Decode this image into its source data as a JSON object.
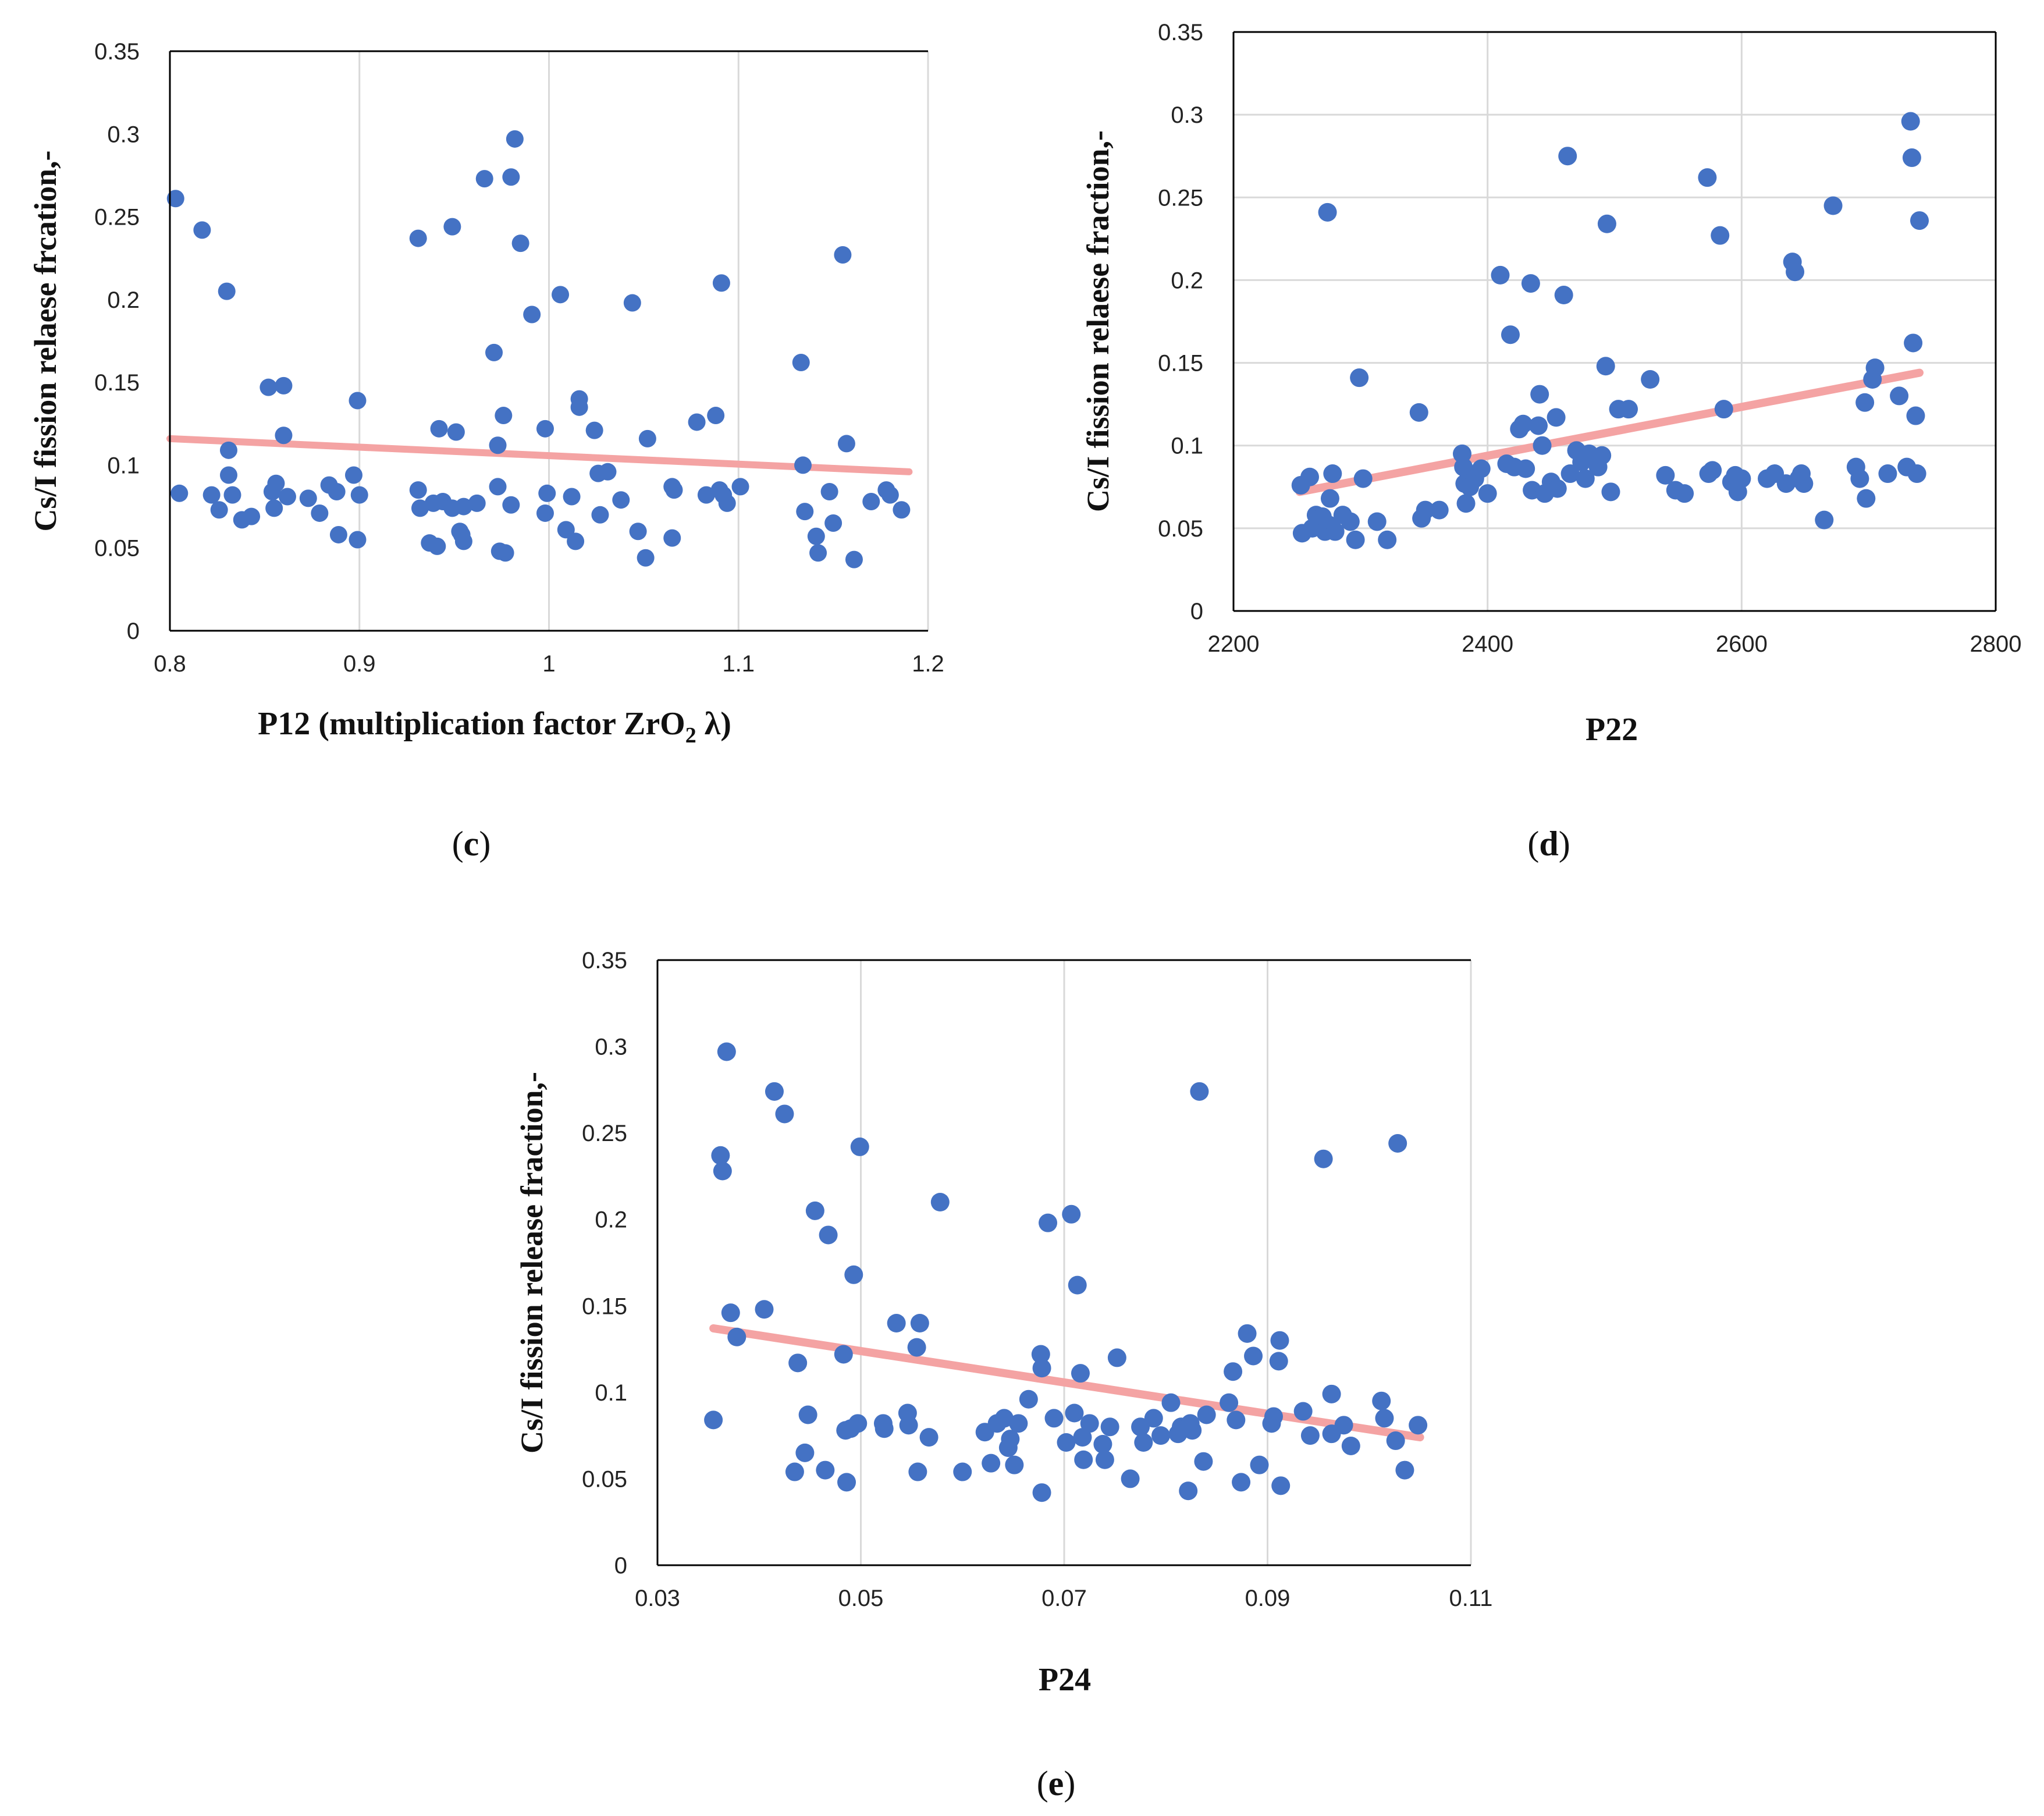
{
  "colors": {
    "points": "#4472c4",
    "trendline": "#f4a3a3",
    "grid": "#d9d9d9",
    "axis": "#000000"
  },
  "chart_data": [
    {
      "id": "c",
      "type": "scatter",
      "panel_label": "c",
      "xlabel": "P12 (multiplication factor ZrO",
      "xlabel_subscript": "2",
      "xlabel_suffix": " λ)",
      "ylabel": "Cs/I fission relaese frcation,-",
      "xlim": [
        0.8,
        1.2
      ],
      "ylim": [
        0,
        0.35
      ],
      "xticks": [
        0.8,
        0.9,
        1.0,
        1.1,
        1.2
      ],
      "xtick_labels": [
        "0.8",
        "0.9",
        "1",
        "1.1",
        "1.2"
      ],
      "yticks": [
        0,
        0.05,
        0.1,
        0.15,
        0.2,
        0.25,
        0.3,
        0.35
      ],
      "ytick_labels": [
        "0",
        "0.05",
        "0.1",
        "0.15",
        "0.2",
        "0.25",
        "0.3",
        "0.35"
      ],
      "grid": "vertical",
      "trendline": {
        "x": [
          0.8,
          1.19
        ],
        "y": [
          0.116,
          0.096
        ]
      },
      "points": [
        [
          0.803,
          0.261
        ],
        [
          0.805,
          0.083
        ],
        [
          0.817,
          0.242
        ],
        [
          0.822,
          0.082
        ],
        [
          0.826,
          0.073
        ],
        [
          0.83,
          0.205
        ],
        [
          0.831,
          0.109
        ],
        [
          0.831,
          0.094
        ],
        [
          0.833,
          0.082
        ],
        [
          0.838,
          0.067
        ],
        [
          0.843,
          0.069
        ],
        [
          0.852,
          0.147
        ],
        [
          0.854,
          0.084
        ],
        [
          0.855,
          0.074
        ],
        [
          0.856,
          0.089
        ],
        [
          0.86,
          0.148
        ],
        [
          0.86,
          0.118
        ],
        [
          0.862,
          0.081
        ],
        [
          0.873,
          0.08
        ],
        [
          0.879,
          0.071
        ],
        [
          0.884,
          0.088
        ],
        [
          0.888,
          0.084
        ],
        [
          0.889,
          0.058
        ],
        [
          0.897,
          0.094
        ],
        [
          0.899,
          0.139
        ],
        [
          0.899,
          0.055
        ],
        [
          0.9,
          0.082
        ],
        [
          0.931,
          0.237
        ],
        [
          0.931,
          0.085
        ],
        [
          0.932,
          0.074
        ],
        [
          0.937,
          0.053
        ],
        [
          0.939,
          0.077
        ],
        [
          0.941,
          0.051
        ],
        [
          0.942,
          0.122
        ],
        [
          0.944,
          0.078
        ],
        [
          0.949,
          0.244
        ],
        [
          0.949,
          0.074
        ],
        [
          0.951,
          0.12
        ],
        [
          0.953,
          0.06
        ],
        [
          0.954,
          0.058
        ],
        [
          0.955,
          0.075
        ],
        [
          0.955,
          0.054
        ],
        [
          0.962,
          0.077
        ],
        [
          0.966,
          0.273
        ],
        [
          0.971,
          0.168
        ],
        [
          0.973,
          0.112
        ],
        [
          0.973,
          0.087
        ],
        [
          0.974,
          0.048
        ],
        [
          0.976,
          0.13
        ],
        [
          0.977,
          0.047
        ],
        [
          0.98,
          0.274
        ],
        [
          0.98,
          0.076
        ],
        [
          0.982,
          0.297
        ],
        [
          0.985,
          0.234
        ],
        [
          0.991,
          0.191
        ],
        [
          0.998,
          0.122
        ],
        [
          0.998,
          0.071
        ],
        [
          0.999,
          0.083
        ],
        [
          1.006,
          0.203
        ],
        [
          1.009,
          0.061
        ],
        [
          1.012,
          0.081
        ],
        [
          1.014,
          0.054
        ],
        [
          1.016,
          0.14
        ],
        [
          1.016,
          0.135
        ],
        [
          1.024,
          0.121
        ],
        [
          1.026,
          0.095
        ],
        [
          1.027,
          0.07
        ],
        [
          1.031,
          0.096
        ],
        [
          1.038,
          0.079
        ],
        [
          1.044,
          0.198
        ],
        [
          1.047,
          0.06
        ],
        [
          1.051,
          0.044
        ],
        [
          1.052,
          0.116
        ],
        [
          1.065,
          0.087
        ],
        [
          1.065,
          0.056
        ],
        [
          1.066,
          0.085
        ],
        [
          1.078,
          0.126
        ],
        [
          1.083,
          0.082
        ],
        [
          1.088,
          0.13
        ],
        [
          1.09,
          0.085
        ],
        [
          1.091,
          0.21
        ],
        [
          1.092,
          0.082
        ],
        [
          1.094,
          0.077
        ],
        [
          1.101,
          0.087
        ],
        [
          1.133,
          0.162
        ],
        [
          1.134,
          0.1
        ],
        [
          1.135,
          0.072
        ],
        [
          1.141,
          0.057
        ],
        [
          1.142,
          0.047
        ],
        [
          1.148,
          0.084
        ],
        [
          1.15,
          0.065
        ],
        [
          1.155,
          0.227
        ],
        [
          1.157,
          0.113
        ],
        [
          1.161,
          0.043
        ],
        [
          1.17,
          0.078
        ],
        [
          1.178,
          0.085
        ],
        [
          1.18,
          0.082
        ],
        [
          1.186,
          0.073
        ]
      ]
    },
    {
      "id": "d",
      "type": "scatter",
      "panel_label": "d",
      "xlabel": "P22",
      "ylabel": "Cs/I fission relaese fraction,-",
      "xlim": [
        2200,
        2800
      ],
      "ylim": [
        0,
        0.35
      ],
      "xticks": [
        2200,
        2400,
        2600,
        2800
      ],
      "xtick_labels": [
        "2200",
        "2400",
        "2600",
        "2800"
      ],
      "yticks": [
        0,
        0.05,
        0.1,
        0.15,
        0.2,
        0.25,
        0.3,
        0.35
      ],
      "ytick_labels": [
        "0",
        "0.05",
        "0.1",
        "0.15",
        "0.2",
        "0.25",
        "0.3",
        "0.35"
      ],
      "grid": "both",
      "trendline": {
        "x": [
          2252,
          2740
        ],
        "y": [
          0.072,
          0.144
        ]
      },
      "points": [
        [
          2253,
          0.076
        ],
        [
          2254,
          0.047
        ],
        [
          2260,
          0.081
        ],
        [
          2262,
          0.05
        ],
        [
          2265,
          0.058
        ],
        [
          2268,
          0.053
        ],
        [
          2270,
          0.057
        ],
        [
          2272,
          0.048
        ],
        [
          2274,
          0.241
        ],
        [
          2275,
          0.052
        ],
        [
          2276,
          0.068
        ],
        [
          2278,
          0.083
        ],
        [
          2280,
          0.048
        ],
        [
          2286,
          0.058
        ],
        [
          2292,
          0.054
        ],
        [
          2296,
          0.043
        ],
        [
          2299,
          0.141
        ],
        [
          2302,
          0.08
        ],
        [
          2313,
          0.054
        ],
        [
          2321,
          0.043
        ],
        [
          2346,
          0.12
        ],
        [
          2348,
          0.056
        ],
        [
          2351,
          0.061
        ],
        [
          2362,
          0.061
        ],
        [
          2380,
          0.095
        ],
        [
          2381,
          0.087
        ],
        [
          2382,
          0.077
        ],
        [
          2383,
          0.065
        ],
        [
          2386,
          0.075
        ],
        [
          2390,
          0.08
        ],
        [
          2395,
          0.086
        ],
        [
          2400,
          0.071
        ],
        [
          2410,
          0.203
        ],
        [
          2415,
          0.089
        ],
        [
          2418,
          0.167
        ],
        [
          2421,
          0.087
        ],
        [
          2425,
          0.11
        ],
        [
          2428,
          0.113
        ],
        [
          2430,
          0.086
        ],
        [
          2434,
          0.198
        ],
        [
          2435,
          0.073
        ],
        [
          2440,
          0.112
        ],
        [
          2441,
          0.131
        ],
        [
          2443,
          0.1
        ],
        [
          2445,
          0.071
        ],
        [
          2450,
          0.078
        ],
        [
          2454,
          0.117
        ],
        [
          2455,
          0.074
        ],
        [
          2460,
          0.191
        ],
        [
          2463,
          0.275
        ],
        [
          2465,
          0.083
        ],
        [
          2470,
          0.097
        ],
        [
          2474,
          0.09
        ],
        [
          2477,
          0.08
        ],
        [
          2480,
          0.095
        ],
        [
          2487,
          0.087
        ],
        [
          2490,
          0.094
        ],
        [
          2493,
          0.148
        ],
        [
          2494,
          0.234
        ],
        [
          2497,
          0.072
        ],
        [
          2503,
          0.122
        ],
        [
          2511,
          0.122
        ],
        [
          2528,
          0.14
        ],
        [
          2540,
          0.082
        ],
        [
          2548,
          0.073
        ],
        [
          2555,
          0.071
        ],
        [
          2573,
          0.262
        ],
        [
          2574,
          0.083
        ],
        [
          2577,
          0.085
        ],
        [
          2583,
          0.227
        ],
        [
          2586,
          0.122
        ],
        [
          2592,
          0.078
        ],
        [
          2595,
          0.082
        ],
        [
          2597,
          0.072
        ],
        [
          2600,
          0.08
        ],
        [
          2620,
          0.08
        ],
        [
          2626,
          0.083
        ],
        [
          2635,
          0.077
        ],
        [
          2640,
          0.211
        ],
        [
          2642,
          0.205
        ],
        [
          2645,
          0.08
        ],
        [
          2647,
          0.083
        ],
        [
          2649,
          0.077
        ],
        [
          2665,
          0.055
        ],
        [
          2672,
          0.245
        ],
        [
          2690,
          0.087
        ],
        [
          2693,
          0.08
        ],
        [
          2697,
          0.126
        ],
        [
          2698,
          0.068
        ],
        [
          2703,
          0.14
        ],
        [
          2705,
          0.147
        ],
        [
          2715,
          0.083
        ],
        [
          2724,
          0.13
        ],
        [
          2730,
          0.087
        ],
        [
          2733,
          0.296
        ],
        [
          2734,
          0.274
        ],
        [
          2735,
          0.162
        ],
        [
          2737,
          0.118
        ],
        [
          2738,
          0.083
        ],
        [
          2740,
          0.236
        ]
      ]
    },
    {
      "id": "e",
      "type": "scatter",
      "panel_label": "e",
      "xlabel": "P24",
      "ylabel": "Cs/I fission release fraction,-",
      "xlim": [
        0.03,
        0.11
      ],
      "ylim": [
        0,
        0.35
      ],
      "xticks": [
        0.03,
        0.05,
        0.07,
        0.09,
        0.11
      ],
      "xtick_labels": [
        "0.03",
        "0.05",
        "0.07",
        "0.09",
        "0.11"
      ],
      "yticks": [
        0,
        0.05,
        0.1,
        0.15,
        0.2,
        0.25,
        0.3,
        0.35
      ],
      "ytick_labels": [
        "0",
        "0.05",
        "0.1",
        "0.15",
        "0.2",
        "0.25",
        "0.3",
        "0.35"
      ],
      "grid": "vertical",
      "trendline": {
        "x": [
          0.0355,
          0.105
        ],
        "y": [
          0.137,
          0.074
        ]
      },
      "points": [
        [
          0.0355,
          0.084
        ],
        [
          0.0362,
          0.237
        ],
        [
          0.0364,
          0.228
        ],
        [
          0.0368,
          0.297
        ],
        [
          0.0372,
          0.146
        ],
        [
          0.0378,
          0.132
        ],
        [
          0.0405,
          0.148
        ],
        [
          0.0415,
          0.274
        ],
        [
          0.0425,
          0.261
        ],
        [
          0.0435,
          0.054
        ],
        [
          0.0438,
          0.117
        ],
        [
          0.0445,
          0.065
        ],
        [
          0.0448,
          0.087
        ],
        [
          0.0455,
          0.205
        ],
        [
          0.0465,
          0.055
        ],
        [
          0.0468,
          0.191
        ],
        [
          0.0483,
          0.122
        ],
        [
          0.0485,
          0.078
        ],
        [
          0.0486,
          0.048
        ],
        [
          0.049,
          0.079
        ],
        [
          0.0493,
          0.168
        ],
        [
          0.0497,
          0.082
        ],
        [
          0.0499,
          0.242
        ],
        [
          0.0522,
          0.082
        ],
        [
          0.0523,
          0.079
        ],
        [
          0.0535,
          0.14
        ],
        [
          0.0546,
          0.088
        ],
        [
          0.0547,
          0.081
        ],
        [
          0.0556,
          0.054
        ],
        [
          0.0555,
          0.126
        ],
        [
          0.0558,
          0.14
        ],
        [
          0.0567,
          0.074
        ],
        [
          0.0578,
          0.21
        ],
        [
          0.06,
          0.054
        ],
        [
          0.0622,
          0.077
        ],
        [
          0.0628,
          0.059
        ],
        [
          0.0634,
          0.082
        ],
        [
          0.0641,
          0.085
        ],
        [
          0.0645,
          0.068
        ],
        [
          0.0647,
          0.073
        ],
        [
          0.0651,
          0.058
        ],
        [
          0.0655,
          0.082
        ],
        [
          0.0665,
          0.096
        ],
        [
          0.0677,
          0.122
        ],
        [
          0.0678,
          0.042
        ],
        [
          0.0678,
          0.114
        ],
        [
          0.0684,
          0.198
        ],
        [
          0.069,
          0.085
        ],
        [
          0.0702,
          0.071
        ],
        [
          0.0707,
          0.203
        ],
        [
          0.071,
          0.088
        ],
        [
          0.0713,
          0.162
        ],
        [
          0.0716,
          0.111
        ],
        [
          0.0718,
          0.074
        ],
        [
          0.0719,
          0.061
        ],
        [
          0.0725,
          0.082
        ],
        [
          0.0738,
          0.07
        ],
        [
          0.074,
          0.061
        ],
        [
          0.0745,
          0.08
        ],
        [
          0.0752,
          0.12
        ],
        [
          0.0765,
          0.05
        ],
        [
          0.0775,
          0.08
        ],
        [
          0.0778,
          0.071
        ],
        [
          0.0788,
          0.085
        ],
        [
          0.0795,
          0.075
        ],
        [
          0.0805,
          0.094
        ],
        [
          0.0812,
          0.076
        ],
        [
          0.0815,
          0.08
        ],
        [
          0.0822,
          0.043
        ],
        [
          0.0824,
          0.082
        ],
        [
          0.0826,
          0.078
        ],
        [
          0.0833,
          0.274
        ],
        [
          0.0837,
          0.06
        ],
        [
          0.084,
          0.087
        ],
        [
          0.0862,
          0.094
        ],
        [
          0.0866,
          0.112
        ],
        [
          0.0869,
          0.084
        ],
        [
          0.0874,
          0.048
        ],
        [
          0.088,
          0.134
        ],
        [
          0.0886,
          0.121
        ],
        [
          0.0892,
          0.058
        ],
        [
          0.0904,
          0.082
        ],
        [
          0.0906,
          0.086
        ],
        [
          0.0911,
          0.118
        ],
        [
          0.0912,
          0.13
        ],
        [
          0.0913,
          0.046
        ],
        [
          0.0935,
          0.089
        ],
        [
          0.0942,
          0.075
        ],
        [
          0.0955,
          0.235
        ],
        [
          0.0963,
          0.099
        ],
        [
          0.0963,
          0.076
        ],
        [
          0.0975,
          0.081
        ],
        [
          0.0982,
          0.069
        ],
        [
          0.1012,
          0.095
        ],
        [
          0.1015,
          0.085
        ],
        [
          0.1026,
          0.072
        ],
        [
          0.1028,
          0.244
        ],
        [
          0.1035,
          0.055
        ],
        [
          0.1048,
          0.081
        ]
      ]
    }
  ]
}
